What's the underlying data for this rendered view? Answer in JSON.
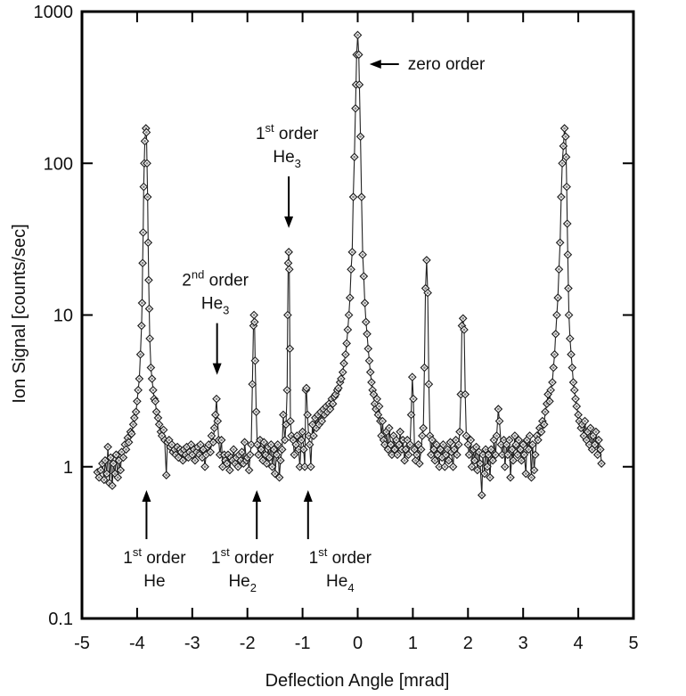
{
  "chart_data": {
    "type": "scatter",
    "title": "",
    "xlabel": "Deflection Angle  [mrad]",
    "ylabel": "Ion Signal  [counts/sec]",
    "xlim": [
      -5,
      5
    ],
    "ylim": [
      0.1,
      1000
    ],
    "yscale": "log",
    "grid": false,
    "legend": "none",
    "marker": "diamond",
    "line_color": "#222222",
    "x_ticks": [
      "-5",
      "-4",
      "-3",
      "-2",
      "-1",
      "0",
      "1",
      "2",
      "3",
      "4",
      "5"
    ],
    "y_ticks": [
      "0.1",
      "1",
      "10",
      "100",
      "1000"
    ],
    "annotations": [
      {
        "key": "zero",
        "order": "",
        "sup": "",
        "word": "zero order",
        "species": "",
        "sub": "",
        "x": 0.02,
        "y": 450,
        "direction": "left"
      },
      {
        "key": "he3-1",
        "order": "1",
        "sup": "st",
        "word": " order",
        "species": "He",
        "sub": "3",
        "x": -1.25,
        "y": 26,
        "direction": "down"
      },
      {
        "key": "he3-2",
        "order": "2",
        "sup": "nd",
        "word": " order",
        "species": "He",
        "sub": "3",
        "x": -2.55,
        "y": 2.8,
        "direction": "down"
      },
      {
        "key": "he-1",
        "order": "1",
        "sup": "st",
        "word": " order",
        "species": "He",
        "sub": "",
        "x": -3.83,
        "y": 0.75,
        "direction": "up"
      },
      {
        "key": "he2-1",
        "order": "1",
        "sup": "st",
        "word": " order",
        "species": "He",
        "sub": "2",
        "x": -1.83,
        "y": 0.75,
        "direction": "up"
      },
      {
        "key": "he4-1",
        "order": "1",
        "sup": "st",
        "word": " order",
        "species": "He",
        "sub": "4",
        "x": -0.9,
        "y": 0.75,
        "direction": "up"
      }
    ],
    "points": [
      [
        -4.72,
        0.92
      ],
      [
        -4.69,
        0.85
      ],
      [
        -4.66,
        0.95
      ],
      [
        -4.63,
        1.05
      ],
      [
        -4.6,
        0.82
      ],
      [
        -4.58,
        1.1
      ],
      [
        -4.55,
        0.9
      ],
      [
        -4.53,
        1.35
      ],
      [
        -4.5,
        0.78
      ],
      [
        -4.48,
        1.15
      ],
      [
        -4.45,
        0.75
      ],
      [
        -4.43,
        1.05
      ],
      [
        -4.4,
        0.9
      ],
      [
        -4.38,
        1.2
      ],
      [
        -4.35,
        0.85
      ],
      [
        -4.33,
        1.1
      ],
      [
        -4.3,
        0.95
      ],
      [
        -4.28,
        1.25
      ],
      [
        -4.25,
        1.15
      ],
      [
        -4.22,
        1.4
      ],
      [
        -4.2,
        1.3
      ],
      [
        -4.17,
        1.55
      ],
      [
        -4.15,
        1.45
      ],
      [
        -4.12,
        1.7
      ],
      [
        -4.1,
        1.65
      ],
      [
        -4.07,
        1.9
      ],
      [
        -4.05,
        2.1
      ],
      [
        -4.02,
        2.3
      ],
      [
        -4.0,
        2.7
      ],
      [
        -3.98,
        3.2
      ],
      [
        -3.96,
        3.8
      ],
      [
        -3.94,
        5.5
      ],
      [
        -3.92,
        8.5
      ],
      [
        -3.91,
        12
      ],
      [
        -3.9,
        22
      ],
      [
        -3.89,
        35
      ],
      [
        -3.88,
        70
      ],
      [
        -3.87,
        100
      ],
      [
        -3.86,
        140
      ],
      [
        -3.84,
        170
      ],
      [
        -3.83,
        160
      ],
      [
        -3.82,
        100
      ],
      [
        -3.81,
        60
      ],
      [
        -3.8,
        30
      ],
      [
        -3.79,
        17
      ],
      [
        -3.78,
        11
      ],
      [
        -3.77,
        7
      ],
      [
        -3.75,
        4.5
      ],
      [
        -3.73,
        3.8
      ],
      [
        -3.71,
        3.2
      ],
      [
        -3.69,
        2.8
      ],
      [
        -3.67,
        2.7
      ],
      [
        -3.65,
        2.3
      ],
      [
        -3.62,
        2.1
      ],
      [
        -3.6,
        1.9
      ],
      [
        -3.57,
        1.7
      ],
      [
        -3.55,
        1.6
      ],
      [
        -3.52,
        1.75
      ],
      [
        -3.5,
        1.5
      ],
      [
        -3.47,
        0.88
      ],
      [
        -3.45,
        1.45
      ],
      [
        -3.42,
        1.5
      ],
      [
        -3.4,
        1.35
      ],
      [
        -3.37,
        1.4
      ],
      [
        -3.35,
        1.25
      ],
      [
        -3.32,
        1.3
      ],
      [
        -3.3,
        1.2
      ],
      [
        -3.27,
        1.35
      ],
      [
        -3.25,
        1.15
      ],
      [
        -3.22,
        1.3
      ],
      [
        -3.2,
        1.25
      ],
      [
        -3.17,
        1.1
      ],
      [
        -3.15,
        1.3
      ],
      [
        -3.12,
        1.2
      ],
      [
        -3.1,
        1.35
      ],
      [
        -3.07,
        1.15
      ],
      [
        -3.05,
        1.25
      ],
      [
        -3.02,
        1.4
      ],
      [
        -3.0,
        1.2
      ],
      [
        -2.97,
        1.3
      ],
      [
        -2.95,
        1.1
      ],
      [
        -2.92,
        1.25
      ],
      [
        -2.9,
        1.35
      ],
      [
        -2.87,
        1.2
      ],
      [
        -2.85,
        1.4
      ],
      [
        -2.82,
        1.15
      ],
      [
        -2.8,
        1.3
      ],
      [
        -2.77,
        1.0
      ],
      [
        -2.75,
        1.2
      ],
      [
        -2.72,
        1.35
      ],
      [
        -2.7,
        1.4
      ],
      [
        -2.67,
        1.25
      ],
      [
        -2.65,
        1.6
      ],
      [
        -2.62,
        1.45
      ],
      [
        -2.6,
        1.8
      ],
      [
        -2.58,
        2.2
      ],
      [
        -2.56,
        2.8
      ],
      [
        -2.54,
        2.0
      ],
      [
        -2.52,
        1.5
      ],
      [
        -2.5,
        1.2
      ],
      [
        -2.47,
        1.5
      ],
      [
        -2.45,
        1.0
      ],
      [
        -2.42,
        1.2
      ],
      [
        -2.4,
        1.1
      ],
      [
        -2.37,
        1.05
      ],
      [
        -2.35,
        1.2
      ],
      [
        -2.32,
        0.95
      ],
      [
        -2.3,
        1.15
      ],
      [
        -2.27,
        1.1
      ],
      [
        -2.25,
        1.3
      ],
      [
        -2.22,
        1.05
      ],
      [
        -2.2,
        1.15
      ],
      [
        -2.17,
        1.0
      ],
      [
        -2.15,
        1.2
      ],
      [
        -2.12,
        1.1
      ],
      [
        -2.1,
        1.25
      ],
      [
        -2.07,
        1.05
      ],
      [
        -2.05,
        1.45
      ],
      [
        -2.02,
        1.1
      ],
      [
        -2.0,
        1.15
      ],
      [
        -1.97,
        0.95
      ],
      [
        -1.95,
        1.2
      ],
      [
        -1.93,
        1.4
      ],
      [
        -1.91,
        3.5
      ],
      [
        -1.89,
        8.5
      ],
      [
        -1.88,
        10
      ],
      [
        -1.87,
        9
      ],
      [
        -1.86,
        5
      ],
      [
        -1.84,
        2.3
      ],
      [
        -1.82,
        1.4
      ],
      [
        -1.8,
        1.2
      ],
      [
        -1.77,
        1.5
      ],
      [
        -1.75,
        1.3
      ],
      [
        -1.72,
        1.1
      ],
      [
        -1.7,
        1.45
      ],
      [
        -1.67,
        1.2
      ],
      [
        -1.65,
        1.05
      ],
      [
        -1.62,
        1.35
      ],
      [
        -1.6,
        1.15
      ],
      [
        -1.57,
        1.4
      ],
      [
        -1.55,
        1.0
      ],
      [
        -1.52,
        1.3
      ],
      [
        -1.5,
        0.9
      ],
      [
        -1.47,
        1.2
      ],
      [
        -1.45,
        1.4
      ],
      [
        -1.42,
        0.85
      ],
      [
        -1.4,
        1.1
      ],
      [
        -1.37,
        1.3
      ],
      [
        -1.35,
        2.2
      ],
      [
        -1.32,
        1.5
      ],
      [
        -1.3,
        1.9
      ],
      [
        -1.28,
        3.2
      ],
      [
        -1.27,
        10
      ],
      [
        -1.26,
        22
      ],
      [
        -1.25,
        26
      ],
      [
        -1.24,
        20
      ],
      [
        -1.23,
        6
      ],
      [
        -1.22,
        2.0
      ],
      [
        -1.2,
        1.6
      ],
      [
        -1.17,
        1.5
      ],
      [
        -1.15,
        1.2
      ],
      [
        -1.12,
        1.4
      ],
      [
        -1.1,
        1.6
      ],
      [
        -1.07,
        1.3
      ],
      [
        -1.05,
        1.0
      ],
      [
        -1.02,
        1.5
      ],
      [
        -1.0,
        1.7
      ],
      [
        -0.98,
        1.3
      ],
      [
        -0.96,
        1.0
      ],
      [
        -0.94,
        3.2
      ],
      [
        -0.93,
        3.3
      ],
      [
        -0.91,
        2.2
      ],
      [
        -0.89,
        1.6
      ],
      [
        -0.87,
        1.4
      ],
      [
        -0.85,
        1.0
      ],
      [
        -0.82,
        1.9
      ],
      [
        -0.8,
        1.6
      ],
      [
        -0.77,
        2.1
      ],
      [
        -0.75,
        1.8
      ],
      [
        -0.72,
        2.2
      ],
      [
        -0.7,
        1.9
      ],
      [
        -0.67,
        2.3
      ],
      [
        -0.65,
        2.0
      ],
      [
        -0.62,
        2.4
      ],
      [
        -0.6,
        2.2
      ],
      [
        -0.57,
        2.5
      ],
      [
        -0.55,
        2.3
      ],
      [
        -0.52,
        2.6
      ],
      [
        -0.5,
        2.4
      ],
      [
        -0.47,
        2.8
      ],
      [
        -0.45,
        2.6
      ],
      [
        -0.42,
        2.9
      ],
      [
        -0.4,
        3.0
      ],
      [
        -0.37,
        3.2
      ],
      [
        -0.35,
        3.3
      ],
      [
        -0.32,
        3.6
      ],
      [
        -0.3,
        3.8
      ],
      [
        -0.27,
        4.2
      ],
      [
        -0.25,
        4.8
      ],
      [
        -0.22,
        5.5
      ],
      [
        -0.2,
        6.5
      ],
      [
        -0.18,
        8
      ],
      [
        -0.16,
        10
      ],
      [
        -0.14,
        13
      ],
      [
        -0.12,
        20
      ],
      [
        -0.1,
        26
      ],
      [
        -0.08,
        60
      ],
      [
        -0.06,
        110
      ],
      [
        -0.04,
        230
      ],
      [
        -0.03,
        330
      ],
      [
        -0.02,
        520
      ],
      [
        0.0,
        700
      ],
      [
        0.02,
        520
      ],
      [
        0.03,
        330
      ],
      [
        0.05,
        150
      ],
      [
        0.07,
        60
      ],
      [
        0.09,
        25
      ],
      [
        0.11,
        18
      ],
      [
        0.13,
        12
      ],
      [
        0.15,
        9
      ],
      [
        0.17,
        7.5
      ],
      [
        0.19,
        6
      ],
      [
        0.21,
        5
      ],
      [
        0.23,
        4.2
      ],
      [
        0.25,
        3.6
      ],
      [
        0.27,
        3.2
      ],
      [
        0.29,
        3.0
      ],
      [
        0.31,
        2.6
      ],
      [
        0.33,
        2.4
      ],
      [
        0.35,
        2.8
      ],
      [
        0.37,
        2.2
      ],
      [
        0.39,
        2.5
      ],
      [
        0.41,
        2.0
      ],
      [
        0.43,
        1.6
      ],
      [
        0.45,
        2.0
      ],
      [
        0.47,
        1.5
      ],
      [
        0.49,
        1.4
      ],
      [
        0.52,
        1.7
      ],
      [
        0.55,
        1.3
      ],
      [
        0.57,
        1.8
      ],
      [
        0.6,
        1.4
      ],
      [
        0.62,
        1.2
      ],
      [
        0.65,
        1.6
      ],
      [
        0.67,
        1.3
      ],
      [
        0.7,
        1.5
      ],
      [
        0.72,
        1.2
      ],
      [
        0.75,
        1.4
      ],
      [
        0.77,
        1.7
      ],
      [
        0.8,
        1.3
      ],
      [
        0.82,
        1.5
      ],
      [
        0.85,
        1.1
      ],
      [
        0.87,
        1.3
      ],
      [
        0.9,
        1.5
      ],
      [
        0.92,
        1.2
      ],
      [
        0.95,
        1.4
      ],
      [
        0.97,
        2.2
      ],
      [
        0.99,
        3.9
      ],
      [
        1.01,
        2.8
      ],
      [
        1.03,
        1.3
      ],
      [
        1.05,
        1.1
      ],
      [
        1.07,
        1.2
      ],
      [
        1.1,
        1.4
      ],
      [
        1.12,
        1.05
      ],
      [
        1.15,
        1.3
      ],
      [
        1.17,
        1.6
      ],
      [
        1.19,
        1.8
      ],
      [
        1.21,
        4.5
      ],
      [
        1.23,
        15
      ],
      [
        1.25,
        23
      ],
      [
        1.27,
        14
      ],
      [
        1.29,
        3.5
      ],
      [
        1.31,
        1.6
      ],
      [
        1.33,
        1.2
      ],
      [
        1.35,
        1.5
      ],
      [
        1.38,
        1.3
      ],
      [
        1.4,
        1.1
      ],
      [
        1.43,
        1.4
      ],
      [
        1.45,
        1.2
      ],
      [
        1.48,
        1.0
      ],
      [
        1.5,
        1.3
      ],
      [
        1.53,
        1.15
      ],
      [
        1.55,
        1.4
      ],
      [
        1.58,
        1.0
      ],
      [
        1.6,
        1.2
      ],
      [
        1.63,
        1.3
      ],
      [
        1.65,
        1.1
      ],
      [
        1.68,
        1.45
      ],
      [
        1.7,
        1.25
      ],
      [
        1.73,
        1.0
      ],
      [
        1.75,
        1.3
      ],
      [
        1.78,
        1.5
      ],
      [
        1.8,
        1.2
      ],
      [
        1.83,
        1.4
      ],
      [
        1.85,
        1.7
      ],
      [
        1.87,
        3.0
      ],
      [
        1.89,
        8.5
      ],
      [
        1.91,
        9.5
      ],
      [
        1.93,
        8.0
      ],
      [
        1.95,
        3.0
      ],
      [
        1.97,
        1.6
      ],
      [
        2.0,
        1.4
      ],
      [
        2.02,
        1.2
      ],
      [
        2.05,
        1.5
      ],
      [
        2.07,
        1.0
      ],
      [
        2.1,
        1.3
      ],
      [
        2.12,
        1.1
      ],
      [
        2.15,
        1.35
      ],
      [
        2.17,
        0.95
      ],
      [
        2.2,
        1.25
      ],
      [
        2.22,
        1.05
      ],
      [
        2.25,
        0.65
      ],
      [
        2.27,
        1.2
      ],
      [
        2.3,
        0.9
      ],
      [
        2.32,
        1.3
      ],
      [
        2.35,
        1.0
      ],
      [
        2.37,
        1.2
      ],
      [
        2.4,
        0.85
      ],
      [
        2.42,
        1.3
      ],
      [
        2.45,
        1.1
      ],
      [
        2.47,
        1.5
      ],
      [
        2.5,
        1.2
      ],
      [
        2.52,
        1.6
      ],
      [
        2.55,
        2.4
      ],
      [
        2.57,
        2.0
      ],
      [
        2.6,
        1.4
      ],
      [
        2.62,
        1.2
      ],
      [
        2.65,
        1.5
      ],
      [
        2.67,
        1.0
      ],
      [
        2.7,
        1.4
      ],
      [
        2.72,
        1.2
      ],
      [
        2.75,
        1.5
      ],
      [
        2.77,
        0.85
      ],
      [
        2.8,
        1.3
      ],
      [
        2.82,
        1.1
      ],
      [
        2.85,
        1.6
      ],
      [
        2.87,
        1.4
      ],
      [
        2.9,
        1.2
      ],
      [
        2.92,
        1.5
      ],
      [
        2.95,
        1.3
      ],
      [
        2.97,
        1.1
      ],
      [
        3.0,
        1.4
      ],
      [
        3.02,
        1.2
      ],
      [
        3.05,
        0.9
      ],
      [
        3.07,
        1.5
      ],
      [
        3.1,
        1.3
      ],
      [
        3.12,
        1.6
      ],
      [
        3.15,
        0.85
      ],
      [
        3.17,
        1.4
      ],
      [
        3.2,
        0.95
      ],
      [
        3.22,
        1.2
      ],
      [
        3.25,
        1.6
      ],
      [
        3.27,
        1.5
      ],
      [
        3.3,
        1.8
      ],
      [
        3.33,
        1.7
      ],
      [
        3.35,
        2.0
      ],
      [
        3.38,
        1.9
      ],
      [
        3.4,
        2.3
      ],
      [
        3.43,
        2.6
      ],
      [
        3.45,
        3.0
      ],
      [
        3.48,
        2.7
      ],
      [
        3.5,
        3.2
      ],
      [
        3.53,
        3.6
      ],
      [
        3.55,
        4.5
      ],
      [
        3.57,
        5.5
      ],
      [
        3.59,
        7.5
      ],
      [
        3.61,
        10
      ],
      [
        3.63,
        13
      ],
      [
        3.65,
        20
      ],
      [
        3.67,
        30
      ],
      [
        3.69,
        60
      ],
      [
        3.71,
        100
      ],
      [
        3.73,
        130
      ],
      [
        3.75,
        170
      ],
      [
        3.77,
        150
      ],
      [
        3.78,
        110
      ],
      [
        3.79,
        70
      ],
      [
        3.8,
        40
      ],
      [
        3.81,
        25
      ],
      [
        3.82,
        15
      ],
      [
        3.83,
        10
      ],
      [
        3.85,
        7
      ],
      [
        3.87,
        5.5
      ],
      [
        3.89,
        4.5
      ],
      [
        3.91,
        3.6
      ],
      [
        3.93,
        3.2
      ],
      [
        3.95,
        2.8
      ],
      [
        3.97,
        2.5
      ],
      [
        4.0,
        2.2
      ],
      [
        4.02,
        2.0
      ],
      [
        4.05,
        1.8
      ],
      [
        4.07,
        1.9
      ],
      [
        4.1,
        1.6
      ],
      [
        4.12,
        2.0
      ],
      [
        4.15,
        1.5
      ],
      [
        4.17,
        1.7
      ],
      [
        4.2,
        1.4
      ],
      [
        4.22,
        1.8
      ],
      [
        4.25,
        1.3
      ],
      [
        4.27,
        1.6
      ],
      [
        4.3,
        1.4
      ],
      [
        4.32,
        1.7
      ],
      [
        4.35,
        1.2
      ],
      [
        4.37,
        1.5
      ],
      [
        4.4,
        1.3
      ],
      [
        4.42,
        1.05
      ]
    ]
  }
}
